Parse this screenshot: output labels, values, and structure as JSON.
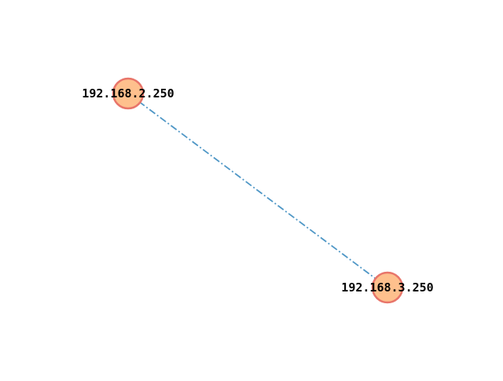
{
  "graph": {
    "nodes": [
      {
        "id": "n1",
        "label": "192.168.2.250"
      },
      {
        "id": "n2",
        "label": "192.168.3.250"
      }
    ],
    "edges": [
      {
        "source": "n1",
        "target": "n2",
        "style": "dash-dot"
      }
    ]
  },
  "colors": {
    "node_fill": "#fec08d",
    "node_stroke": "#e8756a",
    "edge": "#4f97c6",
    "label": "#000000",
    "background": "#ffffff"
  }
}
